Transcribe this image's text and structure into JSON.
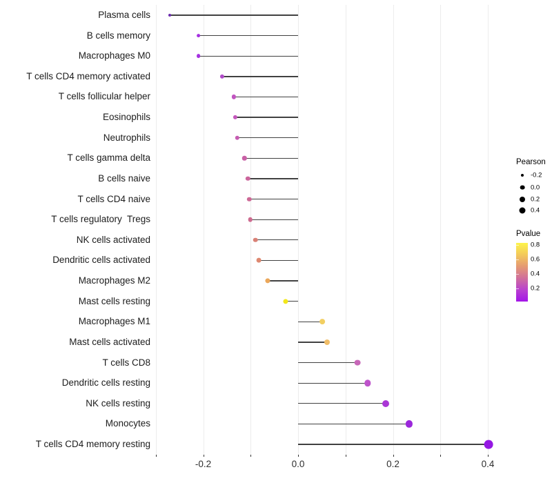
{
  "chart_data": {
    "type": "scatter",
    "subtype": "lollipop",
    "orientation": "horizontal",
    "title": "",
    "xlabel": "",
    "ylabel": "",
    "x_axis": {
      "ticks": [
        -0.2,
        0.0,
        0.2,
        0.4
      ],
      "tick_labels": [
        "-0.2",
        "0.0",
        "0.2",
        "0.4"
      ],
      "range": [
        -0.305,
        0.435
      ],
      "gridline_values": [
        -0.3,
        -0.2,
        -0.1,
        0.0,
        0.1,
        0.2,
        0.3,
        0.4
      ],
      "grid": true
    },
    "points": [
      {
        "label": "Plasma cells",
        "pearson": -0.27,
        "pvalue_est": 0.02,
        "color": "#6b2bae",
        "radius_px": 2.0
      },
      {
        "label": "B cells memory",
        "pearson": -0.21,
        "pvalue_est": 0.06,
        "color": "#a531e0",
        "radius_px": 2.9
      },
      {
        "label": "Macrophages M0",
        "pearson": -0.21,
        "pvalue_est": 0.06,
        "color": "#a531e0",
        "radius_px": 2.9
      },
      {
        "label": "T cells CD4 memory activated",
        "pearson": -0.16,
        "pvalue_est": 0.17,
        "color": "#b04cc8",
        "radius_px": 3.1
      },
      {
        "label": "T cells follicular helper",
        "pearson": -0.135,
        "pvalue_est": 0.23,
        "color": "#c155c0",
        "radius_px": 3.1
      },
      {
        "label": "Eosinophils",
        "pearson": -0.133,
        "pvalue_est": 0.25,
        "color": "#c457bc",
        "radius_px": 3.1
      },
      {
        "label": "Neutrophils",
        "pearson": -0.128,
        "pvalue_est": 0.27,
        "color": "#c65cb2",
        "radius_px": 3.2
      },
      {
        "label": "T cells gamma delta",
        "pearson": -0.113,
        "pvalue_est": 0.31,
        "color": "#c961a6",
        "radius_px": 3.2
      },
      {
        "label": "B cells naive",
        "pearson": -0.106,
        "pvalue_est": 0.34,
        "color": "#cb659c",
        "radius_px": 3.2
      },
      {
        "label": "T cells CD4 naive",
        "pearson": -0.103,
        "pvalue_est": 0.35,
        "color": "#cd6996",
        "radius_px": 3.2
      },
      {
        "label": "T cells regulatory  Tregs",
        "pearson": -0.101,
        "pvalue_est": 0.36,
        "color": "#ce6b90",
        "radius_px": 3.3
      },
      {
        "label": "NK cells activated",
        "pearson": -0.09,
        "pvalue_est": 0.46,
        "color": "#d98176",
        "radius_px": 3.3
      },
      {
        "label": "Dendritic cells activated",
        "pearson": -0.083,
        "pvalue_est": 0.48,
        "color": "#de8870",
        "radius_px": 3.4
      },
      {
        "label": "Macrophages M2",
        "pearson": -0.064,
        "pvalue_est": 0.59,
        "color": "#eba75a",
        "radius_px": 3.6
      },
      {
        "label": "Mast cells resting",
        "pearson": -0.026,
        "pvalue_est": 0.8,
        "color": "#f2e71a",
        "radius_px": 3.6
      },
      {
        "label": "Macrophages M1",
        "pearson": 0.051,
        "pvalue_est": 0.7,
        "color": "#f2cf62",
        "radius_px": 3.9
      },
      {
        "label": "Mast cells activated",
        "pearson": 0.061,
        "pvalue_est": 0.66,
        "color": "#f0bd68",
        "radius_px": 4.0
      },
      {
        "label": "T cells CD8",
        "pearson": 0.125,
        "pvalue_est": 0.25,
        "color": "#c767b8",
        "radius_px": 4.4
      },
      {
        "label": "Dendritic cells resting",
        "pearson": 0.147,
        "pvalue_est": 0.19,
        "color": "#be53cb",
        "radius_px": 4.7
      },
      {
        "label": "NK cells resting",
        "pearson": 0.185,
        "pvalue_est": 0.11,
        "color": "#aa36d6",
        "radius_px": 5.0
      },
      {
        "label": "Monocytes",
        "pearson": 0.234,
        "pvalue_est": 0.07,
        "color": "#9b27db",
        "radius_px": 5.1
      },
      {
        "label": "T cells CD4 memory resting",
        "pearson": 0.402,
        "pvalue_est": 0.03,
        "color": "#9517e3",
        "radius_px": 6.4
      }
    ],
    "legend_size": {
      "title": "Pearson",
      "dot_color": "#000000",
      "items": [
        {
          "label": "-0.2",
          "radius_px": 2.0
        },
        {
          "label": "0.0",
          "radius_px": 3.35
        },
        {
          "label": "0.2",
          "radius_px": 4.0
        },
        {
          "label": "0.4",
          "radius_px": 4.5
        }
      ]
    },
    "legend_color": {
      "title": "Pvalue",
      "labels_top_to_bottom": [
        "0.8",
        "0.6",
        "0.4",
        "0.2"
      ],
      "range": [
        0.01,
        0.82
      ],
      "gradient_bottom_to_top": [
        "#a315e8",
        "#b941cf",
        "#d06f9b",
        "#e59a73",
        "#f3c95b",
        "#fdf44b"
      ]
    },
    "stem_color": "#404040",
    "grid_color": "#ececec",
    "legend_position": "right"
  }
}
